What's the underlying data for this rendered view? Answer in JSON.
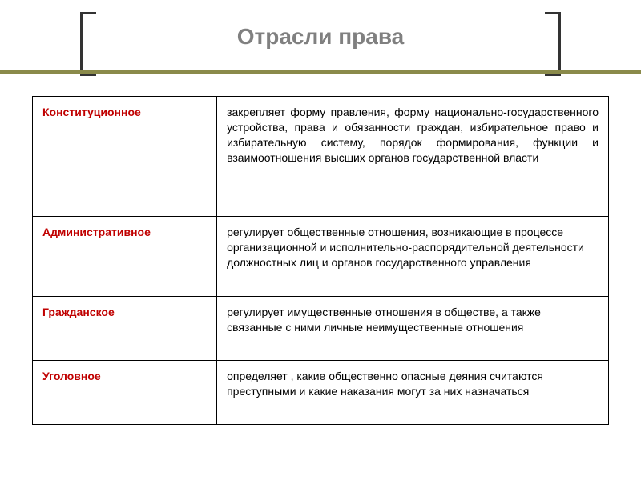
{
  "title": "Отрасли права",
  "table": {
    "rows": [
      {
        "branch": "Конституционное",
        "desc": "закрепляет форму правления, форму национально-государственного устройства, права и обязанности граждан, избирательное право и избирательную систему, порядок формирования, функции и взаимоотношения высших органов государственной власти",
        "justify": true
      },
      {
        "branch": "Административное",
        "desc": "регулирует общественные отношения, возникающие в процессе организационной и исполнительно-распорядительной деятельности должностных лиц и органов государственного управления",
        "justify": false
      },
      {
        "branch": "Гражданское",
        "desc": "регулирует имущественные отношения в обществе, а также связанные с ними личные неимущественные отношения",
        "justify": false
      },
      {
        "branch": "Уголовное",
        "desc": "определяет , какие общественно опасные деяния считаются преступными и какие наказания могут за них назначаться",
        "justify": false
      }
    ]
  },
  "colors": {
    "title": "#808080",
    "branch": "#c00000",
    "border": "#000000",
    "accent": "#8a8a4a",
    "bracket": "#333333"
  }
}
